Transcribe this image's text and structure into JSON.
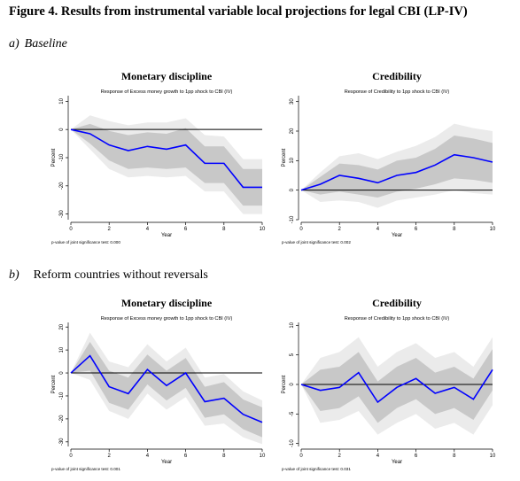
{
  "figure_title": "Figure 4. Results from instrumental variable local projections for legal CBI (LP-IV)",
  "sections": [
    {
      "letter": "a)",
      "label": "Baseline"
    },
    {
      "letter": "b)",
      "label": "Reform countries without reversals"
    }
  ],
  "colors": {
    "line": "#0000ff",
    "band_inner": "#c8c8c8",
    "band_outer": "#ebebeb",
    "zero": "#000000"
  },
  "chart_data": [
    {
      "type": "line",
      "title": "Monetary discipline",
      "subtitle": "Response of Excess money growth to 1pp shock to CBI (IV)",
      "xlabel": "Year",
      "ylabel": "Percent",
      "xlim": [
        0,
        10
      ],
      "ylim": [
        -32,
        12
      ],
      "xticks": [
        0,
        2,
        4,
        6,
        8,
        10
      ],
      "yticks": [
        10,
        0,
        -10,
        -20,
        -30
      ],
      "note": "p-value of joint significance test: 0.000",
      "grid": false,
      "x": [
        0,
        1,
        2,
        3,
        4,
        5,
        6,
        7,
        8,
        9,
        10
      ],
      "series": [
        {
          "values": [
            0,
            -1.5,
            -5.5,
            -7.5,
            -6,
            -7,
            -5.5,
            -12,
            -12,
            -20.5,
            -20.5
          ]
        }
      ],
      "band_inner": {
        "lower": [
          0,
          -5,
          -11,
          -14,
          -13.5,
          -14,
          -13.5,
          -19,
          -19,
          -27,
          -27
        ],
        "upper": [
          0,
          2,
          -0.5,
          -2,
          -1,
          -1.5,
          0.5,
          -6,
          -6,
          -14,
          -14
        ]
      },
      "band_outer": {
        "lower": [
          0,
          -7,
          -14,
          -17,
          -16.5,
          -17,
          -16.5,
          -22,
          -22,
          -30,
          -30
        ],
        "upper": [
          0,
          5,
          3,
          1.5,
          2.5,
          2.5,
          4,
          -2,
          -2.5,
          -10.5,
          -10.5
        ]
      }
    },
    {
      "type": "line",
      "title": "Credibility",
      "subtitle": "Response of Credibility to 1pp shock to CBI (IV)",
      "xlabel": "Year",
      "ylabel": "Percent",
      "xlim": [
        0,
        10
      ],
      "ylim": [
        -10,
        32
      ],
      "xticks": [
        0,
        2,
        4,
        6,
        8,
        10
      ],
      "yticks": [
        30,
        20,
        10,
        0,
        -10
      ],
      "note": "p-value of joint significance test: 0.002",
      "grid": false,
      "x": [
        0,
        1,
        2,
        3,
        4,
        5,
        6,
        7,
        8,
        9,
        10
      ],
      "series": [
        {
          "values": [
            0,
            2,
            5,
            4,
            2.5,
            5,
            6,
            8.5,
            12,
            11,
            9.5
          ]
        }
      ],
      "band_inner": {
        "lower": [
          0,
          -1.5,
          -0.5,
          -1.5,
          -2.5,
          -0.5,
          0.5,
          2,
          4,
          3.5,
          2.5
        ],
        "upper": [
          0,
          4.5,
          9,
          8.5,
          7,
          10,
          11,
          14,
          18.5,
          17.5,
          16
        ]
      },
      "band_outer": {
        "lower": [
          0,
          -4,
          -3.5,
          -4,
          -6,
          -3.5,
          -2.5,
          -1.5,
          0,
          -1,
          -1.5
        ],
        "upper": [
          0,
          6,
          11.5,
          12.5,
          10.5,
          13,
          15,
          18,
          22.5,
          21,
          20
        ]
      }
    },
    {
      "type": "line",
      "title": "Monetary discipline",
      "subtitle": "Response of Excess money growth to 1pp shock to CBI (IV)",
      "xlabel": "Year",
      "ylabel": "Percent",
      "xlim": [
        0,
        10
      ],
      "ylim": [
        -32,
        22
      ],
      "xticks": [
        0,
        2,
        4,
        6,
        8,
        10
      ],
      "yticks": [
        20,
        10,
        0,
        -10,
        -20,
        -30
      ],
      "note": "p-value of joint significance test: 0.001",
      "grid": false,
      "x": [
        0,
        1,
        2,
        3,
        4,
        5,
        6,
        7,
        8,
        9,
        10
      ],
      "series": [
        {
          "values": [
            0,
            7.5,
            -6,
            -9,
            1.5,
            -5.5,
            0,
            -12.5,
            -11,
            -18,
            -21.5
          ]
        }
      ],
      "band_inner": {
        "lower": [
          0,
          1,
          -13,
          -16,
          -5,
          -12,
          -6.5,
          -19.5,
          -18,
          -24.5,
          -28
        ],
        "upper": [
          0,
          13.5,
          1,
          -2,
          8,
          1,
          6.5,
          -6,
          -4,
          -11.5,
          -15
        ]
      },
      "band_outer": {
        "lower": [
          0,
          -3,
          -16.5,
          -20,
          -9,
          -16,
          -10.5,
          -23,
          -22,
          -28,
          -31
        ],
        "upper": [
          0,
          17.5,
          5,
          2.5,
          12.5,
          5,
          11,
          -2,
          -0.5,
          -8,
          -12
        ]
      }
    },
    {
      "type": "line",
      "title": "Credibility",
      "subtitle": "Response of Credibility to 1pp shock to CBI (IV)",
      "xlabel": "Year",
      "ylabel": "Percent",
      "xlim": [
        0,
        10
      ],
      "ylim": [
        -10.5,
        10.5
      ],
      "xticks": [
        0,
        2,
        4,
        6,
        8,
        10
      ],
      "yticks": [
        10,
        5,
        0,
        -5,
        -10
      ],
      "note": "p-value of joint significance test: 0.031",
      "grid": false,
      "x": [
        0,
        1,
        2,
        3,
        4,
        5,
        6,
        7,
        8,
        9,
        10
      ],
      "series": [
        {
          "values": [
            0,
            -1,
            -0.5,
            2,
            -3,
            -0.5,
            1,
            -1.5,
            -0.5,
            -2.5,
            2.5
          ]
        }
      ],
      "band_inner": {
        "lower": [
          0,
          -4.5,
          -4,
          -2,
          -6.5,
          -4,
          -2.5,
          -5,
          -4,
          -6,
          -1
        ],
        "upper": [
          0,
          2.5,
          3,
          5.5,
          0.5,
          3,
          4.5,
          2,
          3,
          1,
          6
        ]
      },
      "band_outer": {
        "lower": [
          0,
          -6.5,
          -6,
          -4.5,
          -8.5,
          -6.5,
          -5,
          -7.5,
          -6.5,
          -8.5,
          -3.5
        ],
        "upper": [
          0,
          4.5,
          5.5,
          8,
          3,
          5.5,
          7,
          4.5,
          5.5,
          3,
          8
        ]
      }
    }
  ]
}
